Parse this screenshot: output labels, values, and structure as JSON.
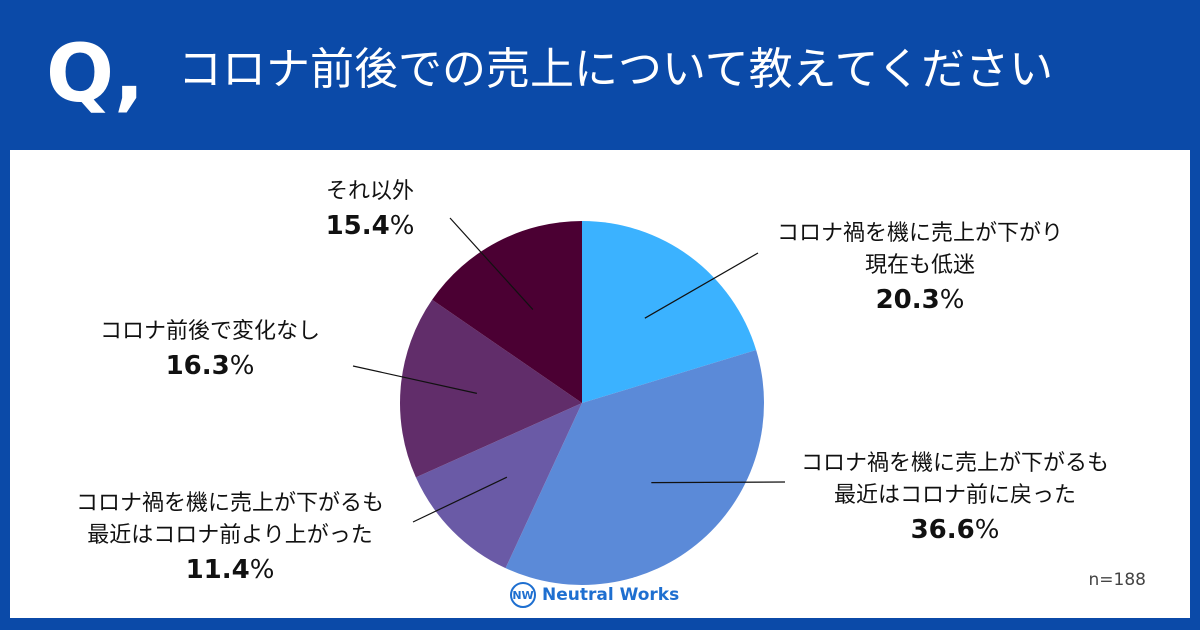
{
  "header": {
    "q_mark": "Q,",
    "title": "コロナ前後での売上について教えてください"
  },
  "chart_data": {
    "type": "pie",
    "start_angle_deg": 0,
    "direction": "clockwise",
    "slices": [
      {
        "name": "コロナ禍を機に売上が下がり 現在も低迷",
        "line1": "コロナ禍を機に売上が下がり",
        "line2": "現在も低迷",
        "value": 20.3,
        "pct_label": "20.3",
        "color": "#3bb2ff"
      },
      {
        "name": "コロナ禍を機に売上が下がるも 最近はコロナ前に戻った",
        "line1": "コロナ禍を機に売上が下がるも",
        "line2": "最近はコロナ前に戻った",
        "value": 36.6,
        "pct_label": "36.6",
        "color": "#5b8ad8"
      },
      {
        "name": "コロナ禍を機に売上が下がるも 最近はコロナ前より上がった",
        "line1": "コロナ禍を機に売上が下がるも",
        "line2": "最近はコロナ前より上がった",
        "value": 11.4,
        "pct_label": "11.4",
        "color": "#6a5aa6"
      },
      {
        "name": "コロナ前後で変化なし",
        "line1": "コロナ前後で変化なし",
        "line2": "",
        "value": 16.3,
        "pct_label": "16.3",
        "color": "#612d6a"
      },
      {
        "name": "それ以外",
        "line1": "それ以外",
        "line2": "",
        "value": 15.4,
        "pct_label": "15.4",
        "color": "#4b0033"
      }
    ],
    "unit": "%",
    "sample_size": "n=188"
  },
  "logo": {
    "mark": "NW",
    "text": "Neutral Works"
  }
}
